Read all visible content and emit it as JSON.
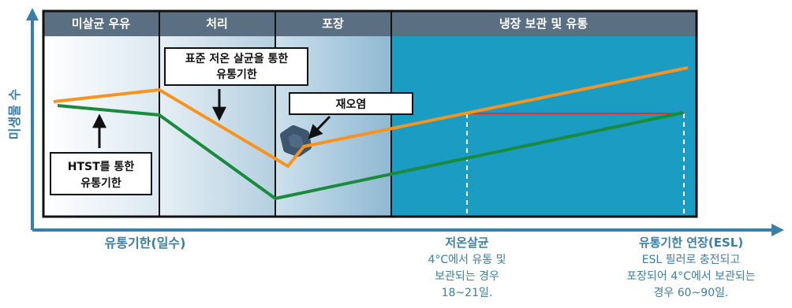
{
  "phases": [
    {
      "label": "미살균 우유"
    },
    {
      "label": "처리"
    },
    {
      "label": "포장"
    },
    {
      "label": "냉장 보관 및 유통"
    }
  ],
  "y_axis_label": "미생물 수",
  "x_axis_label": "유통기한(일수)",
  "callouts": {
    "htst": {
      "line1": "HTST를 통한",
      "line2": "유통기한"
    },
    "standard": {
      "line1": "표준 저온 살균을 통한",
      "line2": "유통기한"
    },
    "recontamination": {
      "line1": "재오염"
    }
  },
  "notes": {
    "pasteurization": {
      "title": "저온살균",
      "line1": "4°C에서 유통 및",
      "line2": "보관되는 경우",
      "line3": "18~21일."
    },
    "esl": {
      "title": "유통기한 연장(ESL)",
      "line1": "ESL 필러로 충전되고",
      "line2": "포장되어 4°C에서 보관되는",
      "line3": "경우 60~90일."
    }
  },
  "colors": {
    "orange_line": "#f7931e",
    "green_line": "#1a8a3c",
    "header_bg": "#5a6f82",
    "storage_bg": "#1a9cc3",
    "axis": "#3a7fa5",
    "reference_line": "#e0302a"
  }
}
